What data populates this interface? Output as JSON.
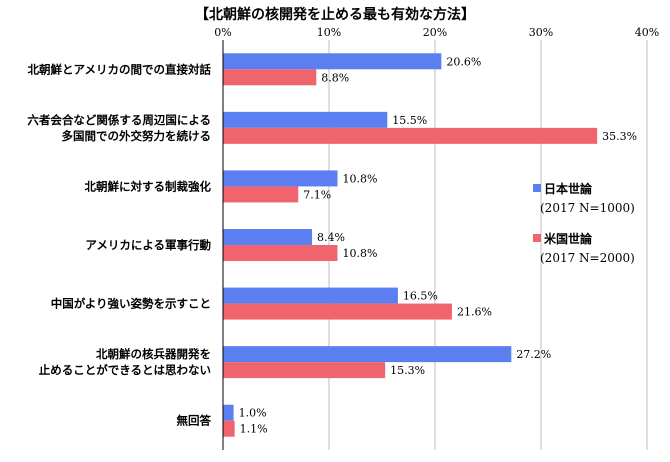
{
  "chart_data": {
    "type": "bar",
    "orientation": "horizontal",
    "title": "【北朝鮮の核開発を止める最も有効な方法】",
    "categories": [
      [
        "北朝鮮とアメリカの間での直接対話"
      ],
      [
        "六者会合など関係する周辺国による",
        "多国間での外交努力を続ける"
      ],
      [
        "北朝鮮に対する制裁強化"
      ],
      [
        "アメリカによる軍事行動"
      ],
      [
        "中国がより強い姿勢を示すこと"
      ],
      [
        "北朝鮮の核兵器開発を",
        "止めることができるとは思わない"
      ],
      [
        "無回答"
      ]
    ],
    "series": [
      {
        "name": "日本世論",
        "subtitle": "(2017 N=1000)",
        "color": "#5B7FF0",
        "values": [
          20.6,
          15.5,
          10.8,
          8.4,
          16.5,
          27.2,
          1.0
        ]
      },
      {
        "name": "米国世論",
        "subtitle": "(2017 N=2000)",
        "color": "#F0646E",
        "values": [
          8.8,
          35.3,
          7.1,
          10.8,
          21.6,
          15.3,
          1.1
        ]
      }
    ],
    "xlim": [
      0,
      40
    ],
    "xticks": [
      0,
      10,
      20,
      30,
      40
    ],
    "tick_suffix": "%",
    "value_suffix": "%",
    "value_decimals": 1,
    "grid": true,
    "legend": "right"
  }
}
